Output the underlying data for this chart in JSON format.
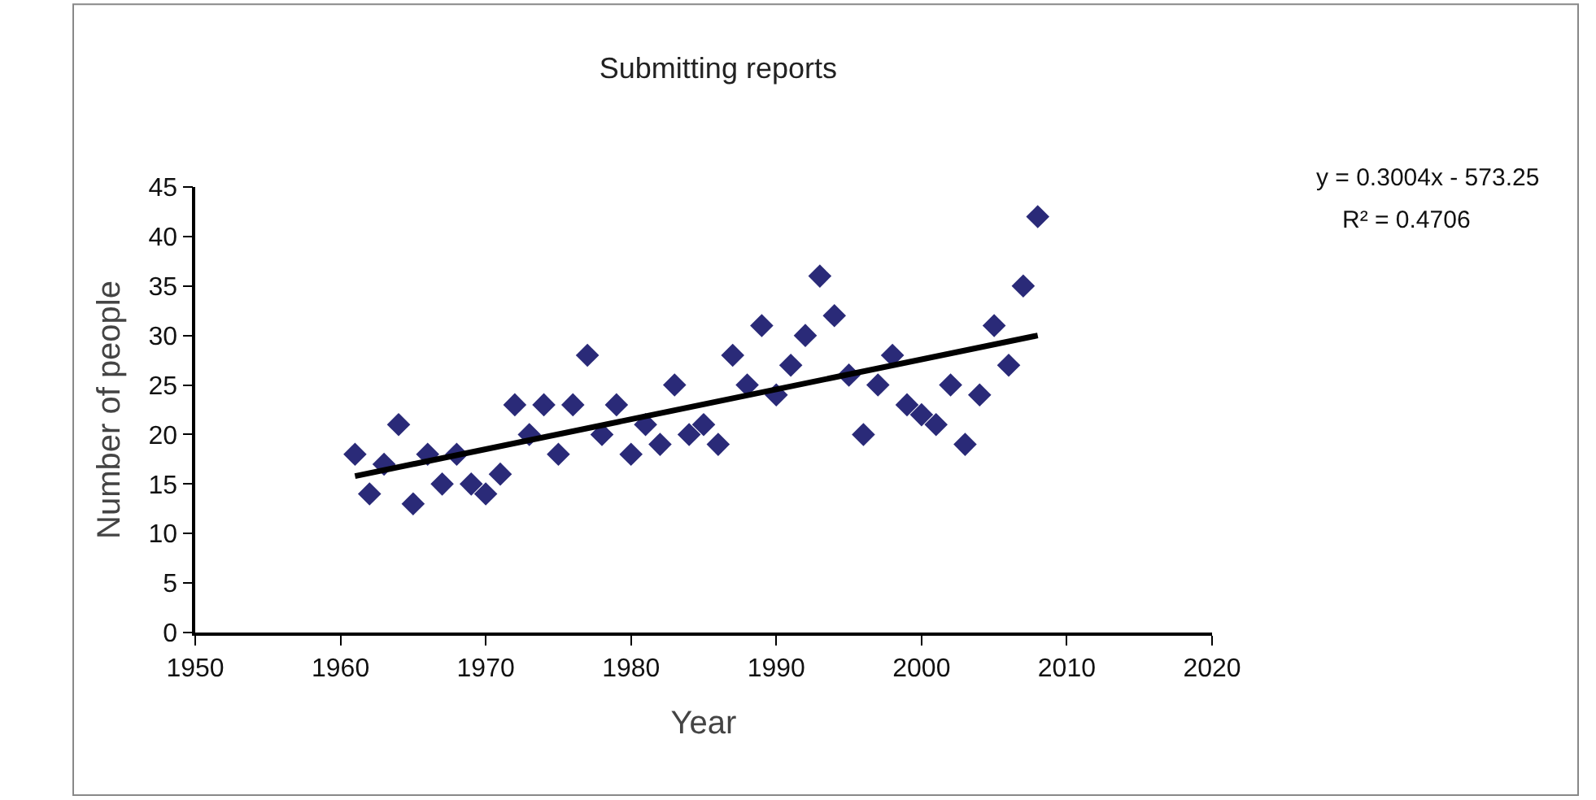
{
  "chart_data": {
    "type": "scatter",
    "title": "Submitting reports",
    "xlabel": "Year",
    "ylabel": "Number of people",
    "annotations": [
      "y = 0.3004x - 573.25",
      "R² = 0.4706"
    ],
    "xlim": [
      1950,
      2020
    ],
    "xticks": [
      1950,
      1960,
      1970,
      1980,
      1990,
      2000,
      2010,
      2020
    ],
    "ylim": [
      0,
      45
    ],
    "yticks": [
      0,
      5,
      10,
      15,
      20,
      25,
      30,
      35,
      40,
      45
    ],
    "marker": "diamond",
    "series": [
      {
        "color": "#2a2a78",
        "x": [
          1961,
          1962,
          1963,
          1964,
          1965,
          1966,
          1967,
          1968,
          1969,
          1970,
          1971,
          1972,
          1973,
          1974,
          1975,
          1976,
          1977,
          1978,
          1979,
          1980,
          1981,
          1982,
          1983,
          1984,
          1985,
          1986,
          1987,
          1988,
          1989,
          1990,
          1991,
          1992,
          1993,
          1994,
          1995,
          1996,
          1997,
          1998,
          1999,
          2000,
          2001,
          2002,
          2003,
          2004,
          2005,
          2006,
          2007,
          2008
        ],
        "values": [
          18,
          14,
          17,
          21,
          13,
          18,
          15,
          18,
          15,
          14,
          16,
          23,
          20,
          23,
          18,
          23,
          28,
          20,
          23,
          18,
          21,
          19,
          25,
          20,
          21,
          19,
          28,
          25,
          31,
          24,
          27,
          30,
          36,
          32,
          26,
          20,
          25,
          28,
          23,
          22,
          21,
          25,
          19,
          24,
          31,
          27,
          35,
          42
        ]
      },
      {
        "type": "line",
        "color": "#000000",
        "line_style": "solid",
        "marker": "none",
        "x": [
          1961,
          2008
        ],
        "values": [
          15.8,
          30.0
        ]
      }
    ]
  }
}
